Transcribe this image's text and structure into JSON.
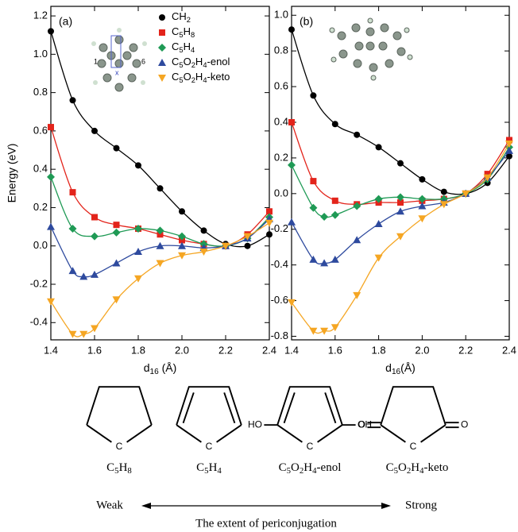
{
  "chart_data": [
    {
      "type": "line",
      "panel_label": "(a)",
      "ylabel": "Energy (eV)",
      "xlabel": "d16 (Å)",
      "xlim": [
        1.4,
        2.4
      ],
      "ylim": [
        -0.49,
        1.25
      ],
      "xticks": [
        1.4,
        1.6,
        1.8,
        {
          "value": 2,
          "label": "2.0"
        },
        2.2,
        2.4
      ],
      "yticks": [
        -0.4,
        -0.2,
        {
          "value": 0,
          "label": "0.0"
        },
        0.2,
        0.4,
        0.6,
        0.8,
        {
          "value": 1,
          "label": "1.0"
        },
        1.2
      ],
      "series": [
        {
          "name": "CH2",
          "color": "#000000",
          "marker": "circle",
          "x": [
            1.4,
            1.5,
            1.6,
            1.7,
            1.8,
            1.9,
            2.0,
            2.1,
            2.2,
            2.3,
            2.4
          ],
          "values": [
            1.12,
            0.76,
            0.6,
            0.51,
            0.42,
            0.3,
            0.18,
            0.08,
            0.01,
            0.0,
            0.06
          ]
        },
        {
          "name": "C5H8",
          "color": "#e3241b",
          "marker": "square",
          "x": [
            1.4,
            1.5,
            1.6,
            1.7,
            1.8,
            1.9,
            2.0,
            2.1,
            2.2,
            2.3,
            2.4
          ],
          "values": [
            0.62,
            0.28,
            0.15,
            0.11,
            0.09,
            0.06,
            0.03,
            0.01,
            0.0,
            0.06,
            0.18
          ]
        },
        {
          "name": "C5H4",
          "color": "#1f9a55",
          "marker": "diamond",
          "x": [
            1.4,
            1.5,
            1.6,
            1.7,
            1.8,
            1.9,
            2.0,
            2.1,
            2.2,
            2.3,
            2.4
          ],
          "values": [
            0.36,
            0.09,
            0.05,
            0.07,
            0.09,
            0.08,
            0.05,
            0.01,
            0.0,
            0.04,
            0.15
          ]
        },
        {
          "name": "C5O2H4-enol",
          "color": "#2e4a9e",
          "marker": "triangle-up",
          "x": [
            1.4,
            1.5,
            1.55,
            1.6,
            1.7,
            1.8,
            1.9,
            2.0,
            2.1,
            2.2,
            2.3,
            2.4
          ],
          "values": [
            0.1,
            -0.13,
            -0.16,
            -0.15,
            -0.09,
            -0.03,
            0.0,
            0.0,
            -0.01,
            0.0,
            0.04,
            0.14
          ]
        },
        {
          "name": "C5O2H4-keto",
          "color": "#f5a623",
          "marker": "triangle-down",
          "x": [
            1.4,
            1.5,
            1.55,
            1.6,
            1.7,
            1.8,
            1.9,
            2.0,
            2.1,
            2.2,
            2.3,
            2.4
          ],
          "values": [
            -0.29,
            -0.46,
            -0.46,
            -0.43,
            -0.28,
            -0.17,
            -0.09,
            -0.05,
            -0.03,
            0.0,
            0.05,
            0.12
          ]
        }
      ]
    },
    {
      "type": "line",
      "panel_label": "(b)",
      "xlabel": "d16(Å)",
      "xlim": [
        1.4,
        2.4
      ],
      "ylim": [
        -0.82,
        1.05
      ],
      "xticks": [
        1.4,
        1.6,
        1.8,
        {
          "value": 2,
          "label": "2.0"
        },
        2.2,
        2.4
      ],
      "yticks": [
        -0.8,
        -0.6,
        -0.4,
        -0.2,
        {
          "value": 0,
          "label": "0.0"
        },
        0.2,
        0.4,
        0.6,
        0.8,
        {
          "value": 1,
          "label": "1.0"
        }
      ],
      "series": [
        {
          "color": "#000000",
          "marker": "circle",
          "x": [
            1.4,
            1.5,
            1.6,
            1.7,
            1.8,
            1.9,
            2.0,
            2.1,
            2.2,
            2.3,
            2.4
          ],
          "values": [
            0.92,
            0.55,
            0.39,
            0.33,
            0.26,
            0.17,
            0.08,
            0.01,
            0.0,
            0.06,
            0.21
          ]
        },
        {
          "color": "#e3241b",
          "marker": "square",
          "x": [
            1.4,
            1.5,
            1.6,
            1.7,
            1.8,
            1.9,
            2.0,
            2.1,
            2.2,
            2.3,
            2.4
          ],
          "values": [
            0.4,
            0.07,
            -0.04,
            -0.06,
            -0.05,
            -0.05,
            -0.04,
            -0.03,
            0.0,
            0.11,
            0.3
          ]
        },
        {
          "color": "#1f9a55",
          "marker": "diamond",
          "x": [
            1.4,
            1.5,
            1.55,
            1.6,
            1.7,
            1.8,
            1.9,
            2.0,
            2.1,
            2.2,
            2.3,
            2.4
          ],
          "values": [
            0.16,
            -0.08,
            -0.13,
            -0.12,
            -0.07,
            -0.03,
            -0.02,
            -0.03,
            -0.03,
            0.0,
            0.08,
            0.26
          ]
        },
        {
          "color": "#2e4a9e",
          "marker": "triangle-up",
          "x": [
            1.4,
            1.5,
            1.55,
            1.6,
            1.7,
            1.8,
            1.9,
            2.0,
            2.1,
            2.2,
            2.3,
            2.4
          ],
          "values": [
            -0.16,
            -0.37,
            -0.39,
            -0.37,
            -0.26,
            -0.17,
            -0.1,
            -0.07,
            -0.05,
            0.0,
            0.09,
            0.24
          ]
        },
        {
          "color": "#f5a623",
          "marker": "triangle-down",
          "x": [
            1.4,
            1.5,
            1.55,
            1.6,
            1.7,
            1.8,
            1.9,
            2.0,
            2.1,
            2.2,
            2.3,
            2.4
          ],
          "values": [
            -0.61,
            -0.77,
            -0.77,
            -0.75,
            -0.57,
            -0.36,
            -0.24,
            -0.14,
            -0.06,
            0.0,
            0.09,
            0.28
          ]
        }
      ]
    }
  ],
  "figure": {
    "inset_labels": [
      "1",
      "6",
      "x"
    ],
    "structures": [
      {
        "label": "C5H8",
        "atoms": [
          "C"
        ]
      },
      {
        "label": "C5H4",
        "atoms": [
          "C"
        ]
      },
      {
        "label": "C5O2H4-enol",
        "atoms": [
          "HO",
          "C",
          "OH"
        ]
      },
      {
        "label": "C5O2H4-keto",
        "atoms": [
          "O",
          "C",
          "O"
        ]
      }
    ],
    "scale": {
      "left": "Weak",
      "right": "Strong",
      "caption": "The extent of periconjugation"
    }
  }
}
